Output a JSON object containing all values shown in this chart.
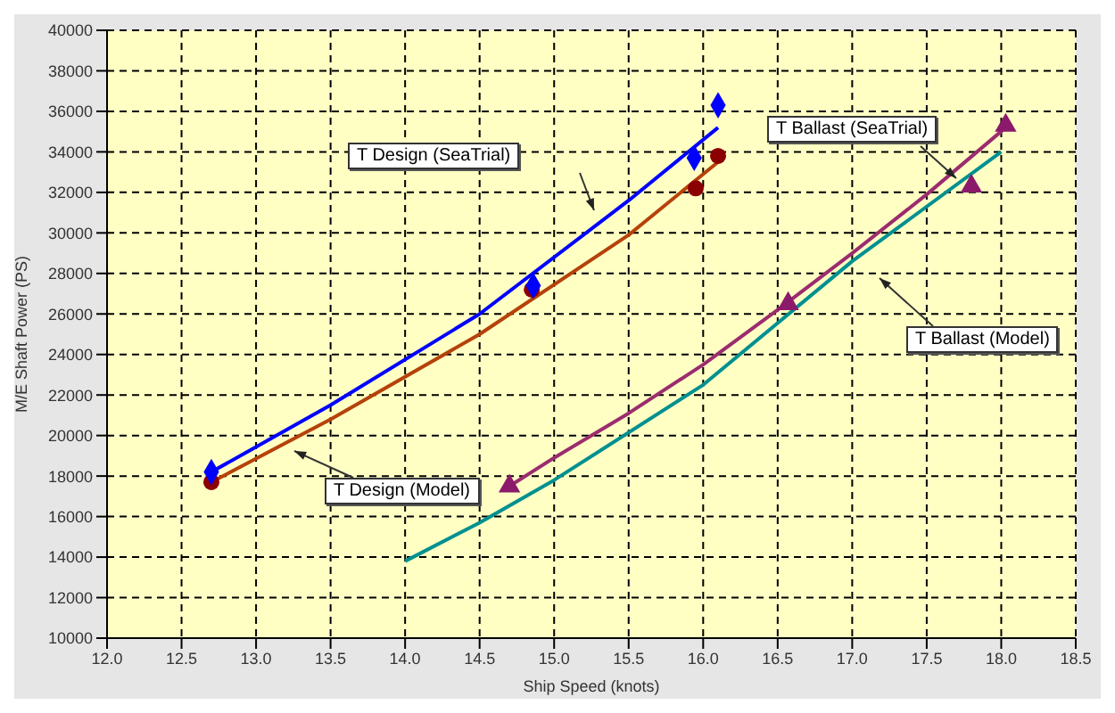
{
  "chart_data": {
    "type": "line",
    "xlabel": "Ship Speed (knots)",
    "ylabel": "M/E Shaft Power (PS)",
    "xlim": [
      12,
      18.5
    ],
    "xticks": [
      {
        "value": 12,
        "label": "12.0"
      },
      {
        "value": 12.5,
        "label": "12.5"
      },
      {
        "value": 13,
        "label": "13.0"
      },
      {
        "value": 13.5,
        "label": "13.5"
      },
      {
        "value": 14,
        "label": "14.0"
      },
      {
        "value": 14.5,
        "label": "14.5"
      },
      {
        "value": 15,
        "label": "15.0"
      },
      {
        "value": 15.5,
        "label": "15.5"
      },
      {
        "value": 16,
        "label": "16.0"
      },
      {
        "value": 16.5,
        "label": "16.5"
      },
      {
        "value": 17,
        "label": "17.0"
      },
      {
        "value": 17.5,
        "label": "17.5"
      },
      {
        "value": 18,
        "label": "18.0"
      },
      {
        "value": 18.5,
        "label": "18.5"
      }
    ],
    "ylim": [
      10000,
      40000
    ],
    "yticks": [
      10000,
      12000,
      14000,
      16000,
      18000,
      20000,
      22000,
      24000,
      26000,
      28000,
      30000,
      32000,
      34000,
      36000,
      38000,
      40000
    ],
    "grid": true,
    "legend": false,
    "series": [
      {
        "color": "#0000ff",
        "marker": "none",
        "x": [
          12.7,
          13.5,
          14.5,
          15.5,
          16.1
        ],
        "values": [
          18200,
          21500,
          26000,
          31600,
          35200
        ]
      },
      {
        "color": "#b5420a",
        "marker": "none",
        "x": [
          12.7,
          13.5,
          14.5,
          15.5,
          16.1
        ],
        "values": [
          17700,
          20800,
          25000,
          29900,
          33500
        ]
      },
      {
        "color": "#9b2c6e",
        "marker": "none",
        "x": [
          14.7,
          15,
          15.5,
          16,
          16.5,
          17,
          17.5,
          18.03
        ],
        "values": [
          17500,
          18900,
          21100,
          23500,
          26200,
          29000,
          31900,
          35200
        ]
      },
      {
        "color": "#009090",
        "marker": "none",
        "x": [
          14,
          14.5,
          15,
          16,
          17,
          18
        ],
        "values": [
          13800,
          15700,
          17800,
          22500,
          28600,
          34000
        ]
      },
      {
        "type": "scatter",
        "color": "#8b0000",
        "marker": "circle",
        "x": [
          12.7,
          14.85,
          15.95,
          16.1
        ],
        "values": [
          17700,
          27200,
          32200,
          33800
        ]
      },
      {
        "type": "scatter",
        "color": "#0000ff",
        "marker": "diamond",
        "x": [
          12.7,
          14.86,
          15.94,
          16.1
        ],
        "values": [
          18200,
          27400,
          33700,
          36300
        ]
      },
      {
        "type": "scatter",
        "color": "#8b1a6b",
        "marker": "triangle",
        "x": [
          14.7,
          16.57,
          17.8,
          18.03
        ],
        "values": [
          17500,
          26500,
          32300,
          35300
        ]
      }
    ],
    "annotations": [
      "T Design (SeaTrial)",
      "T Design (Model)",
      "T Ballast (SeaTrial)",
      "T Ballast (Model)"
    ]
  }
}
